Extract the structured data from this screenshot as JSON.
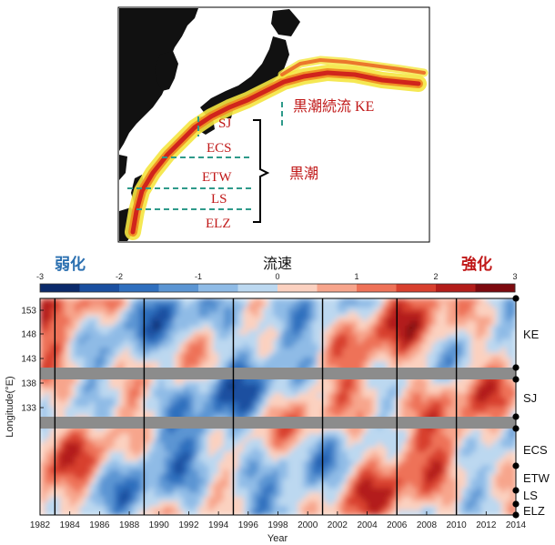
{
  "map": {
    "labels": {
      "kuroshio_extension": "黒潮続流 KE",
      "kuroshio": "黒潮",
      "segments": [
        "SJ",
        "ECS",
        "ETW",
        "LS",
        "ELZ"
      ]
    },
    "colors": {
      "land": "#111111",
      "current": "#e03020",
      "current_edge": "#f4e640",
      "dash": "#2e9a8a"
    }
  },
  "legend": {
    "weak_label": "弱化",
    "strong_label": "強化",
    "center_label": "流速",
    "ticks": [
      "-3",
      "-2",
      "-1",
      "0",
      "1",
      "2",
      "3"
    ],
    "colors": [
      "#0b2a6b",
      "#1a4fa0",
      "#2f6fbe",
      "#5b95d3",
      "#8fbbe6",
      "#bcd8f0",
      "#fbd1c0",
      "#f7a58c",
      "#ee7258",
      "#d8402e",
      "#b31d1a",
      "#7d0a0f"
    ]
  },
  "chart_data": {
    "type": "heatmap",
    "title": "",
    "xlabel": "Year",
    "ylabel": "Longitude(°E)",
    "xlim": [
      1982,
      2014
    ],
    "x_ticks": [
      "1982",
      "1984",
      "1986",
      "1988",
      "1990",
      "1992",
      "1994",
      "1996",
      "1998",
      "2000",
      "2002",
      "2004",
      "2006",
      "2008",
      "2010",
      "2012",
      "2014"
    ],
    "y_ticks": [
      "153",
      "148",
      "143",
      "138",
      "133"
    ],
    "colorbar_range": [
      -3,
      3
    ],
    "vertical_event_lines": [
      1983,
      1989,
      1995,
      2001,
      2006,
      2010
    ],
    "region_labels": [
      "KE",
      "SJ",
      "ECS",
      "ETW",
      "LS",
      "ELZ"
    ]
  }
}
